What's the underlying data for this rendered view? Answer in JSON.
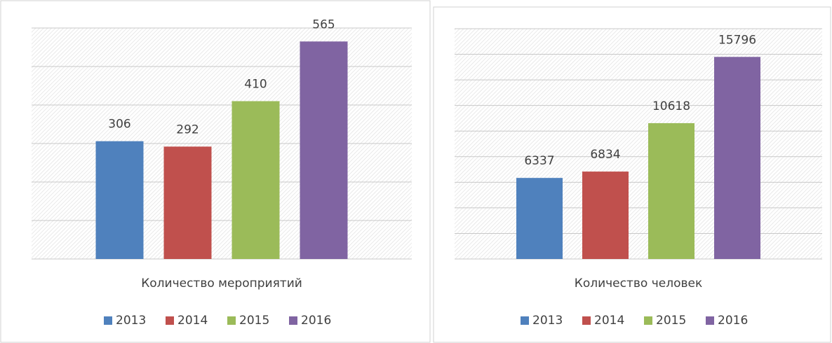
{
  "chart_data": [
    {
      "type": "bar",
      "categories": [
        "Количество мероприятий"
      ],
      "series": [
        {
          "name": "2013",
          "color": "#4f81bd",
          "values": [
            306
          ]
        },
        {
          "name": "2014",
          "color": "#c0504d",
          "values": [
            292
          ]
        },
        {
          "name": "2015",
          "color": "#9bbb59",
          "values": [
            410
          ]
        },
        {
          "name": "2016",
          "color": "#8064a2",
          "values": [
            565
          ]
        }
      ],
      "ylim": [
        0,
        600
      ],
      "yticks": [
        0,
        100,
        200,
        300,
        400,
        500,
        600
      ],
      "grid": true,
      "legend": "bottom"
    },
    {
      "type": "bar",
      "categories": [
        "Количество человек"
      ],
      "series": [
        {
          "name": "2013",
          "color": "#4f81bd",
          "values": [
            6337
          ]
        },
        {
          "name": "2014",
          "color": "#c0504d",
          "values": [
            6834
          ]
        },
        {
          "name": "2015",
          "color": "#9bbb59",
          "values": [
            10618
          ]
        },
        {
          "name": "2016",
          "color": "#8064a2",
          "values": [
            15796
          ]
        }
      ],
      "ylim": [
        0,
        18000
      ],
      "yticks": [
        0,
        2000,
        4000,
        6000,
        8000,
        10000,
        12000,
        14000,
        16000,
        18000
      ],
      "grid": true,
      "legend": "bottom"
    }
  ]
}
